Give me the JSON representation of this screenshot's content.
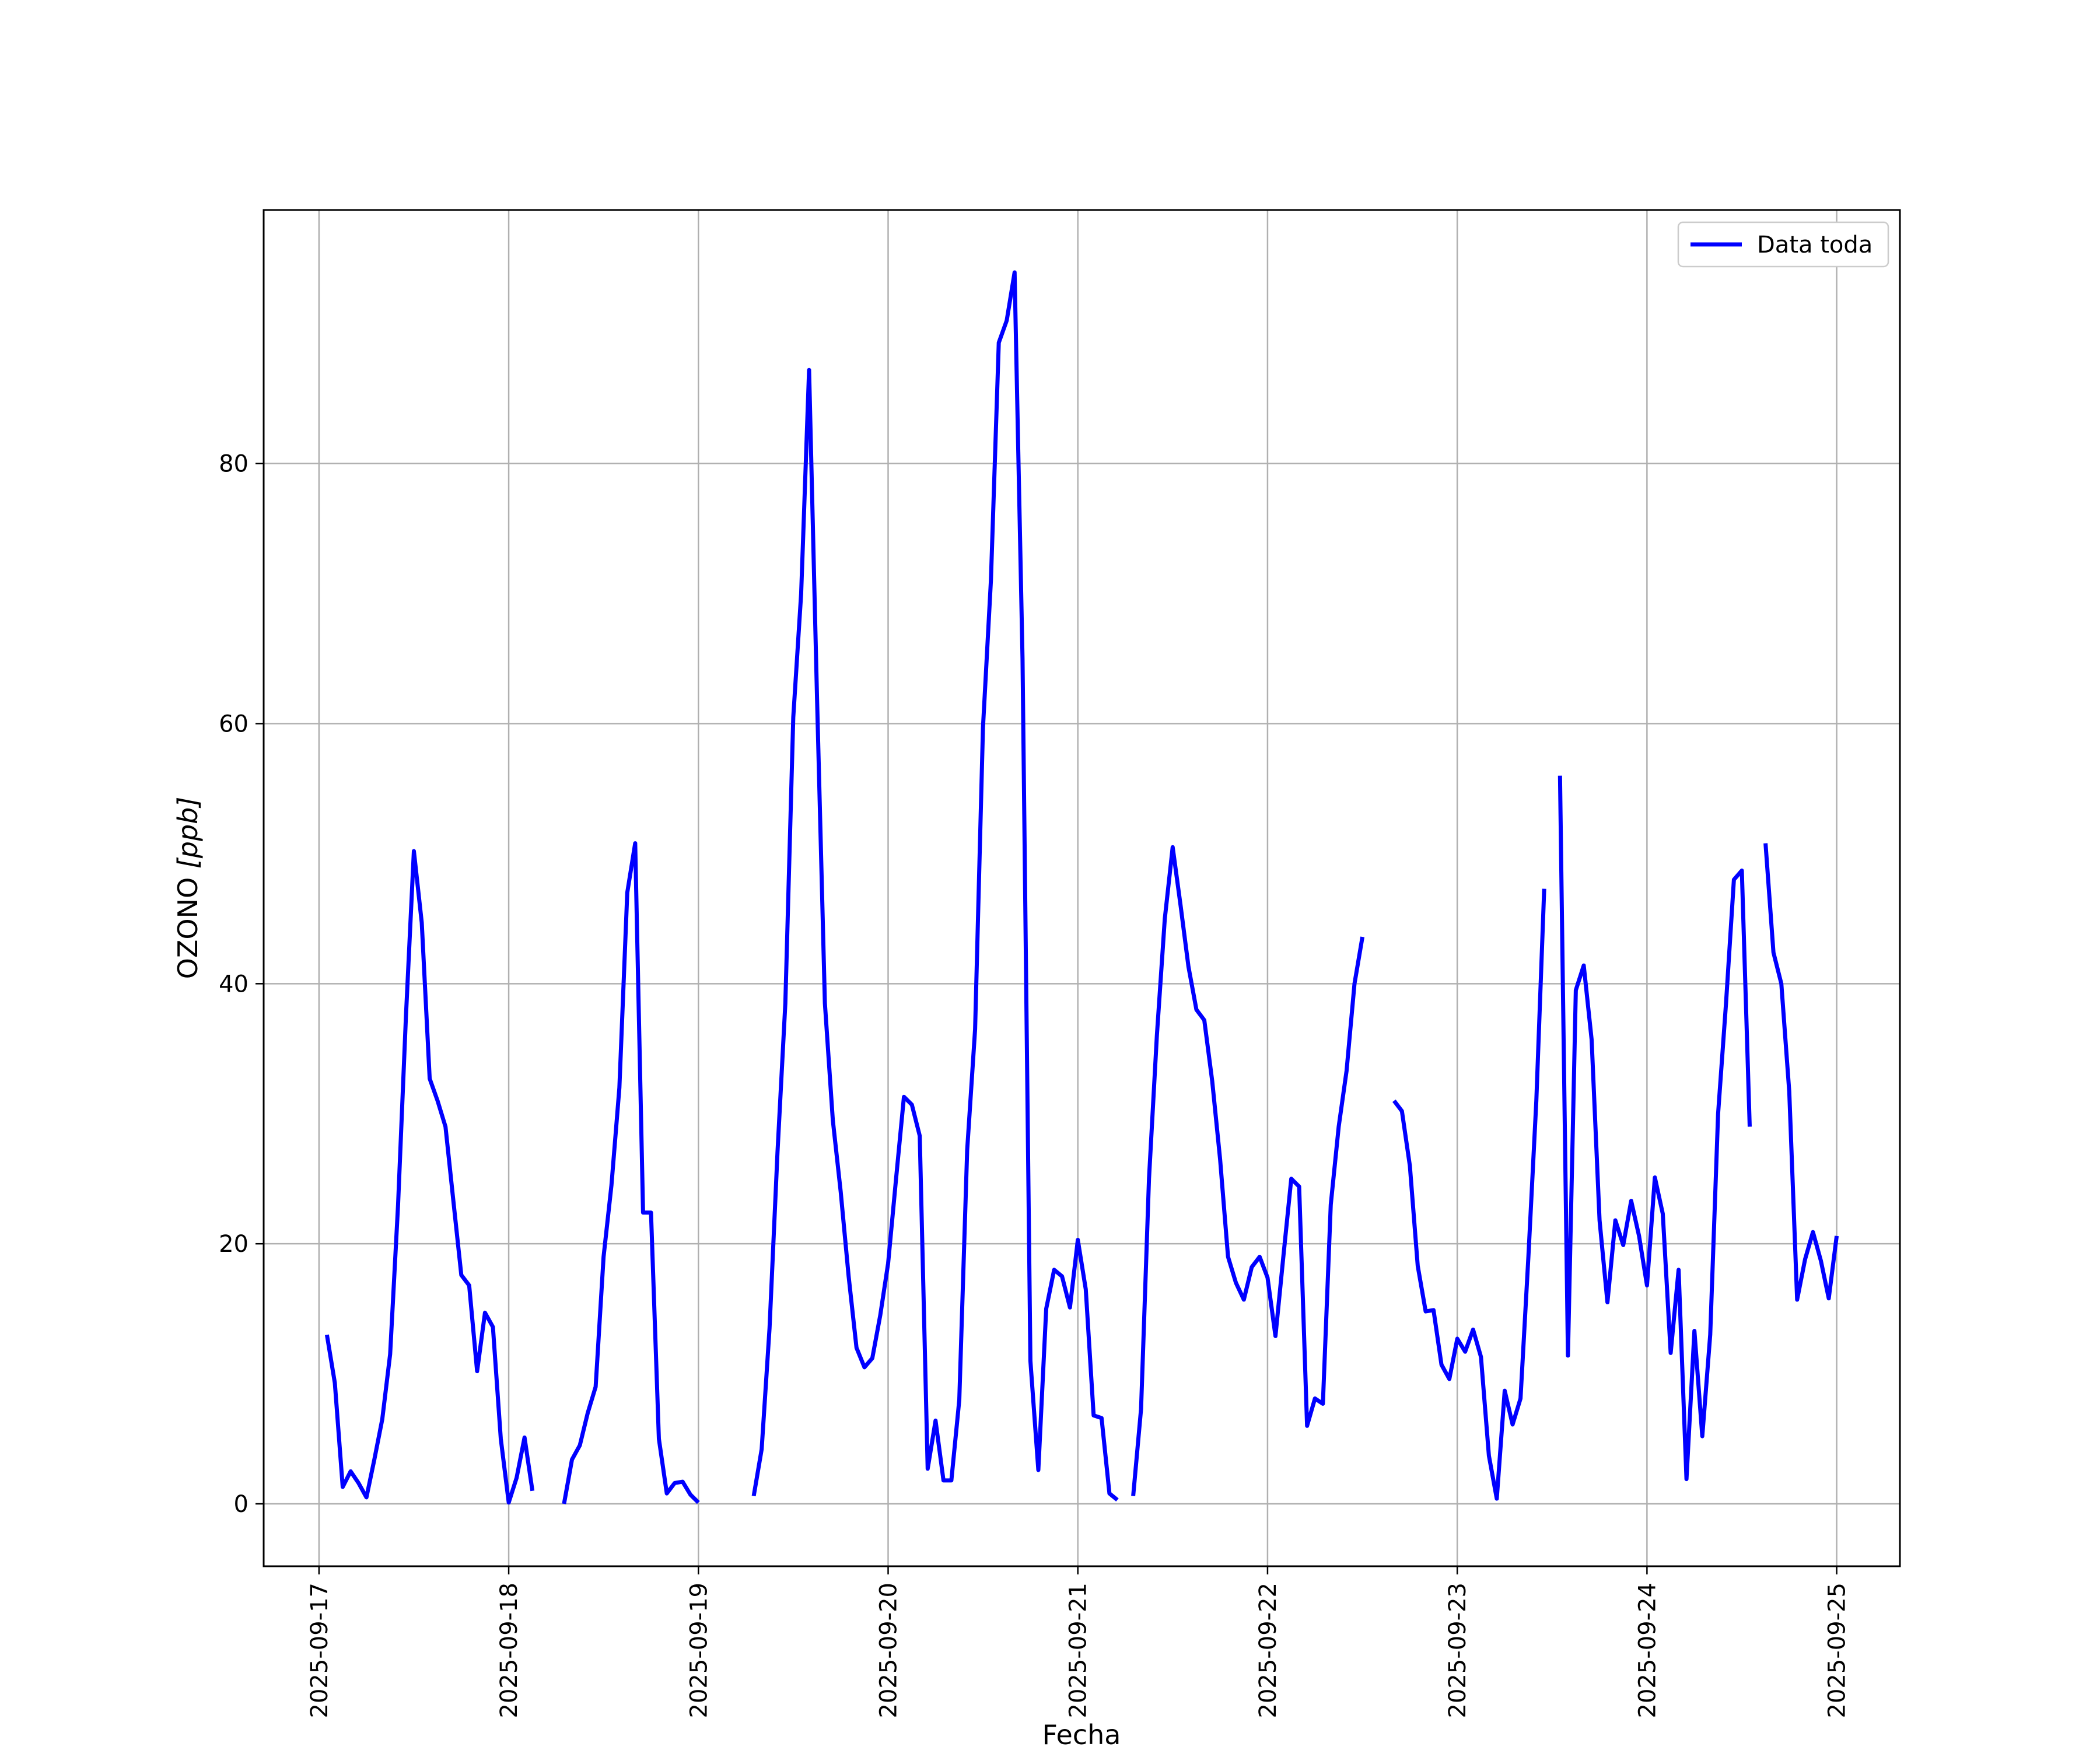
{
  "chart_data": {
    "type": "line",
    "title": "",
    "xlabel": "Fecha",
    "ylabel_prefix": "OZONO ",
    "ylabel_unit": "[ppb]",
    "ylim": [
      -4.8,
      99.5
    ],
    "xlim": [
      "2025-09-16T17:00",
      "2025-09-25T08:00"
    ],
    "x_ticks": [
      "2025-09-17",
      "2025-09-18",
      "2025-09-19",
      "2025-09-20",
      "2025-09-21",
      "2025-09-22",
      "2025-09-23",
      "2025-09-24",
      "2025-09-25"
    ],
    "y_ticks": [
      0,
      20,
      40,
      60,
      80
    ],
    "grid": true,
    "legend_position": "top-right",
    "line_color": "#0000ff",
    "series": [
      {
        "name": "Data toda",
        "segments": [
          [
            [
              "2025-09-17T01:00",
              13.0
            ],
            [
              "2025-09-17T02:00",
              9.3
            ],
            [
              "2025-09-17T03:00",
              1.3
            ],
            [
              "2025-09-17T04:00",
              2.5
            ],
            [
              "2025-09-17T05:00",
              1.6
            ],
            [
              "2025-09-17T06:00",
              0.5
            ],
            [
              "2025-09-17T07:00",
              3.4
            ],
            [
              "2025-09-17T08:00",
              6.5
            ],
            [
              "2025-09-17T09:00",
              11.5
            ],
            [
              "2025-09-17T10:00",
              23.0
            ],
            [
              "2025-09-17T11:00",
              37.5
            ],
            [
              "2025-09-17T12:00",
              50.2
            ],
            [
              "2025-09-17T13:00",
              44.7
            ],
            [
              "2025-09-17T14:00",
              32.7
            ],
            [
              "2025-09-17T15:00",
              31.0
            ],
            [
              "2025-09-17T16:00",
              29.0
            ],
            [
              "2025-09-17T17:00",
              23.3
            ],
            [
              "2025-09-17T18:00",
              17.6
            ],
            [
              "2025-09-17T19:00",
              16.8
            ],
            [
              "2025-09-17T20:00",
              10.2
            ],
            [
              "2025-09-17T21:00",
              14.7
            ],
            [
              "2025-09-17T22:00",
              13.6
            ],
            [
              "2025-09-17T23:00",
              5.0
            ],
            [
              "2025-09-18T00:00",
              0.1
            ],
            [
              "2025-09-18T01:00",
              2.0
            ],
            [
              "2025-09-18T02:00",
              5.1
            ],
            [
              "2025-09-18T03:00",
              1.0
            ]
          ],
          [
            [
              "2025-09-18T07:00",
              0.0
            ],
            [
              "2025-09-18T08:00",
              3.4
            ],
            [
              "2025-09-18T09:00",
              4.5
            ],
            [
              "2025-09-18T10:00",
              7.0
            ],
            [
              "2025-09-18T11:00",
              9.0
            ],
            [
              "2025-09-18T12:00",
              19.0
            ],
            [
              "2025-09-18T13:00",
              24.5
            ],
            [
              "2025-09-18T14:00",
              32.0
            ],
            [
              "2025-09-18T15:00",
              47.0
            ],
            [
              "2025-09-18T16:00",
              50.8
            ],
            [
              "2025-09-18T17:00",
              22.4
            ],
            [
              "2025-09-18T18:00",
              22.4
            ],
            [
              "2025-09-18T19:00",
              5.0
            ],
            [
              "2025-09-18T20:00",
              0.8
            ],
            [
              "2025-09-18T21:00",
              1.6
            ],
            [
              "2025-09-18T22:00",
              1.7
            ],
            [
              "2025-09-18T23:00",
              0.7
            ],
            [
              "2025-09-19T00:00",
              0.1
            ]
          ],
          [
            [
              "2025-09-19T07:00",
              0.6
            ],
            [
              "2025-09-19T08:00",
              4.2
            ],
            [
              "2025-09-19T09:00",
              13.5
            ],
            [
              "2025-09-19T10:00",
              27.0
            ],
            [
              "2025-09-19T11:00",
              38.5
            ],
            [
              "2025-09-19T12:00",
              60.5
            ],
            [
              "2025-09-19T13:00",
              70.0
            ],
            [
              "2025-09-19T14:00",
              87.2
            ],
            [
              "2025-09-19T15:00",
              62.0
            ],
            [
              "2025-09-19T16:00",
              38.5
            ],
            [
              "2025-09-19T17:00",
              29.5
            ],
            [
              "2025-09-19T18:00",
              24.0
            ],
            [
              "2025-09-19T19:00",
              17.5
            ],
            [
              "2025-09-19T20:00",
              12.0
            ],
            [
              "2025-09-19T21:00",
              10.5
            ],
            [
              "2025-09-19T22:00",
              11.2
            ],
            [
              "2025-09-19T23:00",
              14.5
            ],
            [
              "2025-09-20T00:00",
              18.5
            ],
            [
              "2025-09-20T01:00",
              25.0
            ],
            [
              "2025-09-20T02:00",
              31.3
            ],
            [
              "2025-09-20T03:00",
              30.7
            ],
            [
              "2025-09-20T04:00",
              28.3
            ],
            [
              "2025-09-20T05:00",
              2.7
            ],
            [
              "2025-09-20T06:00",
              6.4
            ],
            [
              "2025-09-20T07:00",
              1.8
            ],
            [
              "2025-09-20T08:00",
              1.8
            ],
            [
              "2025-09-20T09:00",
              8.0
            ],
            [
              "2025-09-20T10:00",
              27.2
            ],
            [
              "2025-09-20T11:00",
              36.5
            ],
            [
              "2025-09-20T12:00",
              59.7
            ],
            [
              "2025-09-20T13:00",
              71.0
            ],
            [
              "2025-09-20T14:00",
              89.3
            ],
            [
              "2025-09-20T15:00",
              91.0
            ],
            [
              "2025-09-20T16:00",
              94.7
            ],
            [
              "2025-09-20T17:00",
              65.0
            ],
            [
              "2025-09-20T18:00",
              11.0
            ],
            [
              "2025-09-20T19:00",
              2.6
            ],
            [
              "2025-09-20T20:00",
              15.0
            ],
            [
              "2025-09-20T21:00",
              18.0
            ],
            [
              "2025-09-20T22:00",
              17.5
            ],
            [
              "2025-09-20T23:00",
              15.1
            ],
            [
              "2025-09-21T00:00",
              20.3
            ],
            [
              "2025-09-21T01:00",
              16.5
            ],
            [
              "2025-09-21T02:00",
              6.8
            ],
            [
              "2025-09-21T03:00",
              6.6
            ],
            [
              "2025-09-21T04:00",
              0.8
            ],
            [
              "2025-09-21T05:00",
              0.3
            ]
          ],
          [
            [
              "2025-09-21T07:00",
              0.6
            ],
            [
              "2025-09-21T08:00",
              7.3
            ],
            [
              "2025-09-21T09:00",
              25.0
            ],
            [
              "2025-09-21T10:00",
              36.0
            ],
            [
              "2025-09-21T11:00",
              45.0
            ],
            [
              "2025-09-21T12:00",
              50.5
            ],
            [
              "2025-09-21T13:00",
              46.0
            ],
            [
              "2025-09-21T14:00",
              41.3
            ],
            [
              "2025-09-21T15:00",
              38.0
            ],
            [
              "2025-09-21T16:00",
              37.2
            ],
            [
              "2025-09-21T17:00",
              32.5
            ],
            [
              "2025-09-21T18:00",
              26.5
            ],
            [
              "2025-09-21T19:00",
              19.0
            ],
            [
              "2025-09-21T20:00",
              17.0
            ],
            [
              "2025-09-21T21:00",
              15.7
            ],
            [
              "2025-09-21T22:00",
              18.2
            ],
            [
              "2025-09-21T23:00",
              19.0
            ],
            [
              "2025-09-22T00:00",
              17.4
            ],
            [
              "2025-09-22T01:00",
              12.9
            ],
            [
              "2025-09-22T02:00",
              19.0
            ],
            [
              "2025-09-22T03:00",
              25.0
            ],
            [
              "2025-09-22T04:00",
              24.4
            ],
            [
              "2025-09-22T05:00",
              6.0
            ],
            [
              "2025-09-22T06:00",
              8.1
            ],
            [
              "2025-09-22T07:00",
              7.7
            ],
            [
              "2025-09-22T08:00",
              23.0
            ],
            [
              "2025-09-22T09:00",
              29.0
            ],
            [
              "2025-09-22T10:00",
              33.3
            ],
            [
              "2025-09-22T11:00",
              40.0
            ],
            [
              "2025-09-22T12:00",
              43.6
            ]
          ],
          [
            [
              "2025-09-22T16:00",
              31.0
            ],
            [
              "2025-09-22T17:00",
              30.2
            ],
            [
              "2025-09-22T18:00",
              26.0
            ],
            [
              "2025-09-22T19:00",
              18.3
            ],
            [
              "2025-09-22T20:00",
              14.8
            ],
            [
              "2025-09-22T21:00",
              14.9
            ],
            [
              "2025-09-22T22:00",
              10.7
            ],
            [
              "2025-09-22T23:00",
              9.6
            ],
            [
              "2025-09-23T00:00",
              12.7
            ],
            [
              "2025-09-23T01:00",
              11.7
            ],
            [
              "2025-09-23T02:00",
              13.4
            ],
            [
              "2025-09-23T03:00",
              11.3
            ],
            [
              "2025-09-23T04:00",
              3.7
            ],
            [
              "2025-09-23T05:00",
              0.4
            ],
            [
              "2025-09-23T06:00",
              8.7
            ],
            [
              "2025-09-23T07:00",
              6.1
            ],
            [
              "2025-09-23T08:00",
              8.1
            ],
            [
              "2025-09-23T09:00",
              19.0
            ],
            [
              "2025-09-23T10:00",
              31.0
            ],
            [
              "2025-09-23T11:00",
              47.3
            ]
          ],
          [
            [
              "2025-09-23T13:00",
              56.0
            ],
            [
              "2025-09-23T14:00",
              11.4
            ],
            [
              "2025-09-23T15:00",
              39.5
            ],
            [
              "2025-09-23T16:00",
              41.4
            ],
            [
              "2025-09-23T17:00",
              35.7
            ],
            [
              "2025-09-23T18:00",
              21.8
            ],
            [
              "2025-09-23T19:00",
              15.5
            ],
            [
              "2025-09-23T20:00",
              21.8
            ],
            [
              "2025-09-23T21:00",
              19.9
            ],
            [
              "2025-09-23T22:00",
              23.3
            ],
            [
              "2025-09-23T23:00",
              20.6
            ],
            [
              "2025-09-24T00:00",
              16.8
            ],
            [
              "2025-09-24T01:00",
              25.1
            ],
            [
              "2025-09-24T02:00",
              22.3
            ],
            [
              "2025-09-24T03:00",
              11.6
            ],
            [
              "2025-09-24T04:00",
              18.0
            ],
            [
              "2025-09-24T05:00",
              1.9
            ],
            [
              "2025-09-24T06:00",
              13.3
            ],
            [
              "2025-09-24T07:00",
              5.2
            ],
            [
              "2025-09-24T08:00",
              13.0
            ],
            [
              "2025-09-24T09:00",
              30.0
            ],
            [
              "2025-09-24T10:00",
              38.5
            ],
            [
              "2025-09-24T11:00",
              48.0
            ],
            [
              "2025-09-24T12:00",
              48.7
            ],
            [
              "2025-09-24T13:00",
              29.0
            ]
          ],
          [
            [
              "2025-09-24T15:00",
              50.8
            ],
            [
              "2025-09-24T16:00",
              42.4
            ],
            [
              "2025-09-24T17:00",
              40.0
            ],
            [
              "2025-09-24T18:00",
              31.7
            ],
            [
              "2025-09-24T19:00",
              15.7
            ],
            [
              "2025-09-24T20:00",
              18.8
            ],
            [
              "2025-09-24T21:00",
              20.9
            ],
            [
              "2025-09-24T22:00",
              18.7
            ],
            [
              "2025-09-24T23:00",
              15.8
            ],
            [
              "2025-09-25T00:00",
              20.6
            ]
          ]
        ]
      }
    ]
  }
}
